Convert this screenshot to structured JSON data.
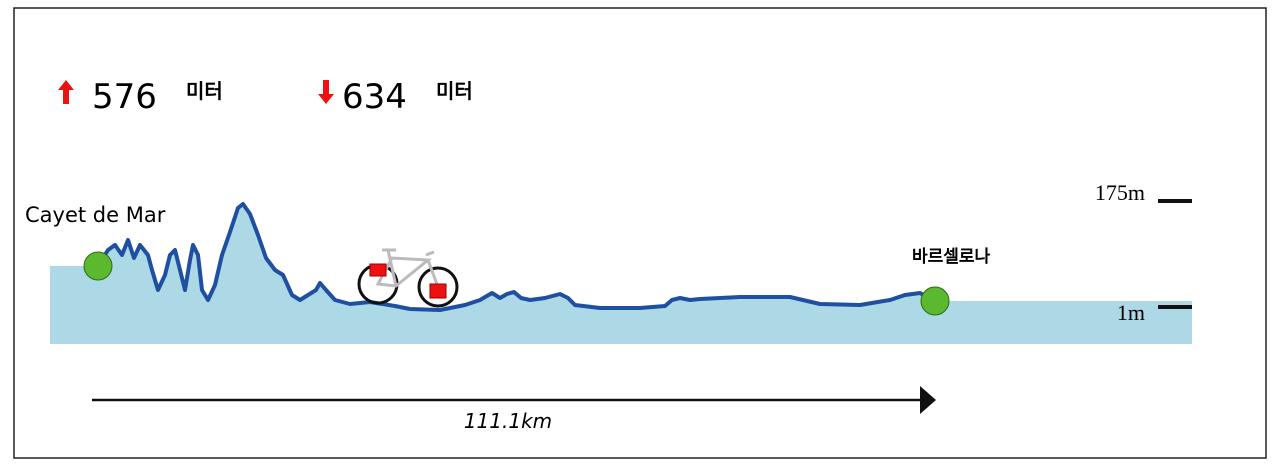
{
  "stats": {
    "ascent": {
      "value": "576",
      "unit": "미터"
    },
    "descent": {
      "value": "634",
      "unit": "미터"
    }
  },
  "route": {
    "start": "Cayet de Mar",
    "end": "바르셀로나",
    "distance": "111.1km"
  },
  "scale": {
    "top": "175m",
    "bottom": "1m"
  }
}
